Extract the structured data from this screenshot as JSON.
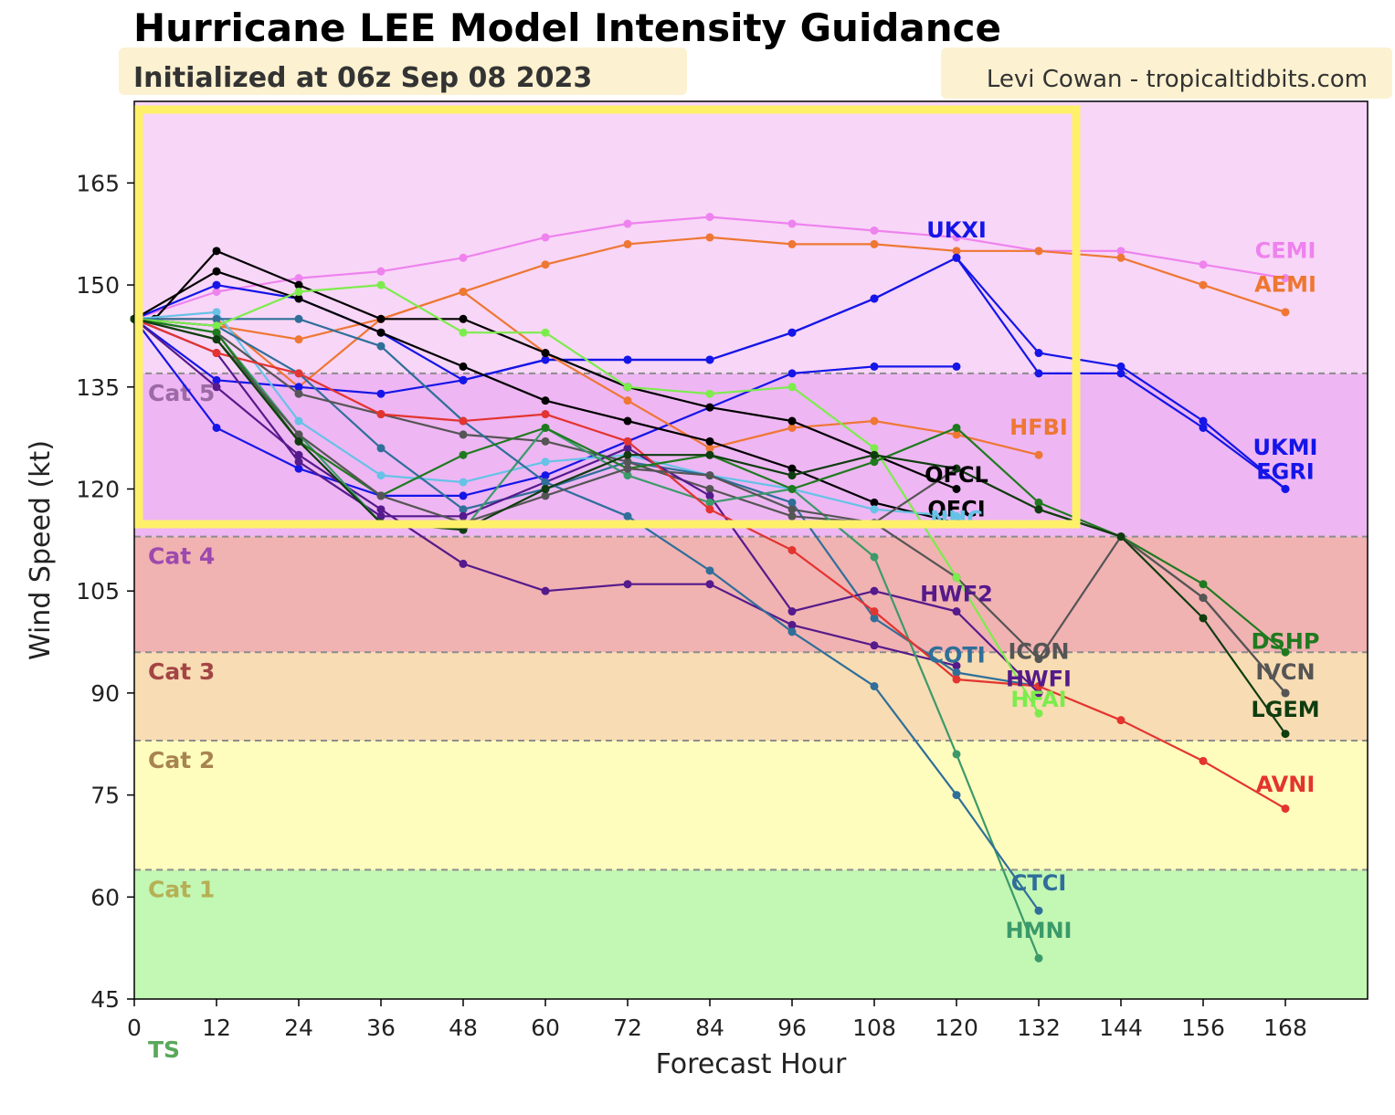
{
  "header": {
    "title": "Hurricane LEE Model Intensity Guidance",
    "subtitle": "Initialized at 06z Sep 08 2023",
    "credit": "Levi Cowan - tropicaltidbits.com"
  },
  "chart_data": {
    "type": "line",
    "xlabel": "Forecast Hour",
    "ylabel": "Wind Speed (kt)",
    "xlim": [
      0,
      180
    ],
    "ylim": [
      45,
      177
    ],
    "xticks": [
      0,
      12,
      24,
      36,
      48,
      60,
      72,
      84,
      96,
      108,
      120,
      132,
      144,
      156,
      168
    ],
    "yticks": [
      45,
      60,
      75,
      90,
      105,
      120,
      135,
      150,
      165
    ],
    "grid": false,
    "categories": [
      {
        "label": "TS",
        "from": 34,
        "to": 64,
        "color": "#c3f7b4",
        "label_color": "#5aa85a"
      },
      {
        "label": "Cat 1",
        "from": 64,
        "to": 83,
        "color": "#fffdbd",
        "label_color": "#b5b055"
      },
      {
        "label": "Cat 2",
        "from": 83,
        "to": 96,
        "color": "#f8dcb3",
        "label_color": "#a8844e"
      },
      {
        "label": "Cat 3",
        "from": 96,
        "to": 113,
        "color": "#f1b2b2",
        "label_color": "#a34545"
      },
      {
        "label": "Cat 4",
        "from": 113,
        "to": 137,
        "color": "#eeb6f3",
        "label_color": "#9d4aae"
      },
      {
        "label": "Cat 5",
        "from": 137,
        "to": 177,
        "color": "#f8d6f7",
        "label_color": "#9c6aa6"
      }
    ],
    "series": [
      {
        "name": "CEMI",
        "color": "#ee82ee",
        "x": [
          0,
          12,
          24,
          36,
          48,
          60,
          72,
          84,
          96,
          108,
          120,
          132,
          144,
          156,
          168
        ],
        "y": [
          145,
          149,
          151,
          152,
          154,
          157,
          159,
          160,
          159,
          158,
          157,
          155,
          155,
          153,
          151
        ]
      },
      {
        "name": "AEMI",
        "color": "#ee7733",
        "x": [
          0,
          12,
          24,
          36,
          48,
          60,
          72,
          84,
          96,
          108,
          120,
          132,
          144,
          156,
          168
        ],
        "y": [
          145,
          145,
          135,
          145,
          149,
          153,
          156,
          157,
          156,
          156,
          155,
          155,
          154,
          150,
          146
        ]
      },
      {
        "name": "UKXI",
        "color": "#1515e8",
        "x": [
          0,
          12,
          24,
          36,
          48,
          60,
          72,
          84,
          96,
          108,
          120
        ],
        "y": [
          145,
          129,
          123,
          119,
          119,
          122,
          127,
          132,
          137,
          138,
          138
        ]
      },
      {
        "name": "UKMI",
        "color": "#1515e8",
        "x": [
          0,
          12,
          24,
          36,
          48,
          60,
          72,
          84,
          96,
          108,
          120,
          132,
          144,
          156,
          168
        ],
        "y": [
          145,
          150,
          148,
          143,
          136,
          139,
          139,
          139,
          143,
          148,
          154,
          140,
          138,
          130,
          120
        ]
      },
      {
        "name": "EGRI",
        "color": "#1515e8",
        "x": [
          0,
          12,
          24,
          36,
          48,
          60,
          72,
          84,
          96,
          108,
          120,
          132,
          144,
          156,
          168
        ],
        "y": [
          145,
          136,
          135,
          134,
          136,
          139,
          139,
          139,
          143,
          148,
          154,
          137,
          137,
          129,
          120
        ]
      },
      {
        "name": "HFBI",
        "color": "#ee7733",
        "x": [
          0,
          12,
          24,
          36,
          48,
          60,
          72,
          84,
          96,
          108,
          120,
          132
        ],
        "y": [
          145,
          144,
          142,
          145,
          149,
          140,
          133,
          126,
          129,
          130,
          128,
          125
        ]
      },
      {
        "name": "OFCL",
        "color": "#000000",
        "x": [
          0,
          12,
          24,
          36,
          48,
          60,
          72,
          84,
          96,
          108,
          120
        ],
        "y": [
          145,
          152,
          148,
          143,
          138,
          133,
          130,
          127,
          123,
          118,
          115
        ]
      },
      {
        "name": "OFCI",
        "color": "#000000",
        "x": [
          0,
          3,
          12,
          24,
          36,
          48,
          60,
          72,
          84,
          96,
          108,
          120
        ],
        "y": [
          145,
          145,
          155,
          150,
          145,
          145,
          140,
          135,
          132,
          130,
          125,
          120
        ]
      },
      {
        "name": "NHC",
        "color": "#66c2e6",
        "x": [
          0,
          12,
          24,
          36,
          48,
          60,
          72,
          84,
          96,
          108,
          120
        ],
        "y": [
          145,
          146,
          130,
          122,
          121,
          124,
          125,
          122,
          120,
          117,
          116
        ]
      },
      {
        "name": "HWF2",
        "color": "#551a8b",
        "x": [
          0,
          12,
          24,
          36,
          48,
          60,
          72,
          84,
          96,
          108,
          120
        ],
        "y": [
          145,
          135,
          125,
          117,
          109,
          105,
          106,
          106,
          100,
          97,
          94
        ]
      },
      {
        "name": "COTI",
        "color": "#2f6f99",
        "x": [
          0,
          12,
          24,
          36,
          48,
          60,
          72,
          84,
          96,
          108,
          120,
          132
        ],
        "y": [
          145,
          144,
          137,
          126,
          117,
          120,
          124,
          122,
          118,
          101,
          93,
          91
        ]
      },
      {
        "name": "ICON",
        "color": "#555555",
        "x": [
          0,
          12,
          24,
          36,
          48,
          60,
          72,
          84,
          96,
          108,
          120,
          132,
          144,
          156,
          168
        ],
        "y": [
          145,
          143,
          134,
          131,
          128,
          127,
          124,
          120,
          116,
          115,
          107,
          95,
          113,
          104,
          90
        ]
      },
      {
        "name": "HWFI",
        "color": "#551a8b",
        "x": [
          0,
          12,
          24,
          36,
          48,
          60,
          72,
          84,
          96,
          108,
          120,
          132
        ],
        "y": [
          145,
          140,
          124,
          116,
          116,
          121,
          126,
          119,
          102,
          105,
          102,
          90
        ]
      },
      {
        "name": "HMNI",
        "color": "#3c9a6a",
        "x": [
          0,
          12,
          24,
          36,
          48,
          60,
          72,
          84,
          96,
          108,
          120,
          132
        ],
        "y": [
          145,
          143,
          128,
          115,
          114,
          129,
          122,
          118,
          120,
          110,
          81,
          51
        ]
      },
      {
        "name": "CTCI",
        "color": "#2f6f99",
        "x": [
          0,
          12,
          24,
          36,
          48,
          60,
          72,
          84,
          96,
          108,
          120,
          132
        ],
        "y": [
          145,
          145,
          145,
          141,
          130,
          121,
          116,
          108,
          99,
          91,
          75,
          58
        ]
      },
      {
        "name": "HFAI",
        "color": "#7cec4c",
        "x": [
          0,
          12,
          24,
          36,
          48,
          60,
          72,
          84,
          96,
          108,
          120,
          132
        ],
        "y": [
          145,
          144,
          149,
          150,
          143,
          143,
          135,
          134,
          135,
          126,
          107,
          87
        ]
      },
      {
        "name": "AVNI",
        "color": "#e3342f",
        "x": [
          0,
          12,
          24,
          36,
          48,
          60,
          72,
          84,
          96,
          108,
          120,
          132,
          144,
          156,
          168
        ],
        "y": [
          145,
          140,
          137,
          131,
          130,
          131,
          127,
          117,
          111,
          102,
          92,
          91,
          86,
          80,
          73
        ]
      },
      {
        "name": "DSHP",
        "color": "#1f7a1f",
        "x": [
          0,
          12,
          24,
          36,
          48,
          60,
          72,
          84,
          96,
          108,
          120,
          132,
          144,
          156,
          168
        ],
        "y": [
          145,
          143,
          127,
          119,
          125,
          129,
          123,
          125,
          120,
          124,
          129,
          118,
          113,
          106,
          96
        ]
      },
      {
        "name": "IVCN",
        "color": "#555555",
        "x": [
          0,
          12,
          24,
          36,
          48,
          60,
          72,
          84,
          96,
          108,
          120,
          132,
          144,
          156,
          168
        ],
        "y": [
          145,
          142,
          128,
          119,
          115,
          119,
          123,
          122,
          117,
          115,
          123,
          117,
          113,
          104,
          90
        ]
      },
      {
        "name": "LGEM",
        "color": "#0f3d0f",
        "x": [
          0,
          12,
          24,
          36,
          48,
          60,
          72,
          84,
          96,
          108,
          120,
          132,
          144,
          156,
          168
        ],
        "y": [
          145,
          142,
          127,
          115,
          114,
          120,
          125,
          125,
          122,
          125,
          123,
          117,
          113,
          101,
          84
        ]
      }
    ],
    "series_labels": [
      {
        "text": "CEMI",
        "x": 168,
        "y": 154,
        "color": "#ee82ee"
      },
      {
        "text": "AEMI",
        "x": 168,
        "y": 149,
        "color": "#ee7733"
      },
      {
        "text": "UKXI",
        "x": 120,
        "y": 157,
        "color": "#1515e8"
      },
      {
        "text": "UKMI",
        "x": 168,
        "y": 125,
        "color": "#1515e8"
      },
      {
        "text": "EGRI",
        "x": 168,
        "y": 121.5,
        "color": "#1515e8"
      },
      {
        "text": "HFBI",
        "x": 132,
        "y": 128,
        "color": "#ee7733"
      },
      {
        "text": "OFCL",
        "x": 120,
        "y": 121,
        "color": "#000000"
      },
      {
        "text": "OFCI",
        "x": 120,
        "y": 116,
        "color": "#000000"
      },
      {
        "text": "NHC",
        "x": 120,
        "y": 114.5,
        "color": "#66c2e6"
      },
      {
        "text": "HWF2",
        "x": 120,
        "y": 103.5,
        "color": "#551a8b"
      },
      {
        "text": "COTI",
        "x": 120,
        "y": 94.5,
        "color": "#2f6f99"
      },
      {
        "text": "ICON",
        "x": 132,
        "y": 95,
        "color": "#555555"
      },
      {
        "text": "HWFI",
        "x": 132,
        "y": 91,
        "color": "#551a8b"
      },
      {
        "text": "HFAI",
        "x": 132,
        "y": 88,
        "color": "#7cec4c"
      },
      {
        "text": "DSHP",
        "x": 168,
        "y": 96.5,
        "color": "#1f7a1f"
      },
      {
        "text": "IVCN",
        "x": 168,
        "y": 92,
        "color": "#555555"
      },
      {
        "text": "LGEM",
        "x": 168,
        "y": 86.5,
        "color": "#0f3d0f"
      },
      {
        "text": "AVNI",
        "x": 168,
        "y": 75.5,
        "color": "#e3342f"
      },
      {
        "text": "CTCI",
        "x": 132,
        "y": 61,
        "color": "#2f6f99"
      },
      {
        "text": "HMNI",
        "x": 132,
        "y": 54,
        "color": "#3c9a6a"
      }
    ]
  }
}
